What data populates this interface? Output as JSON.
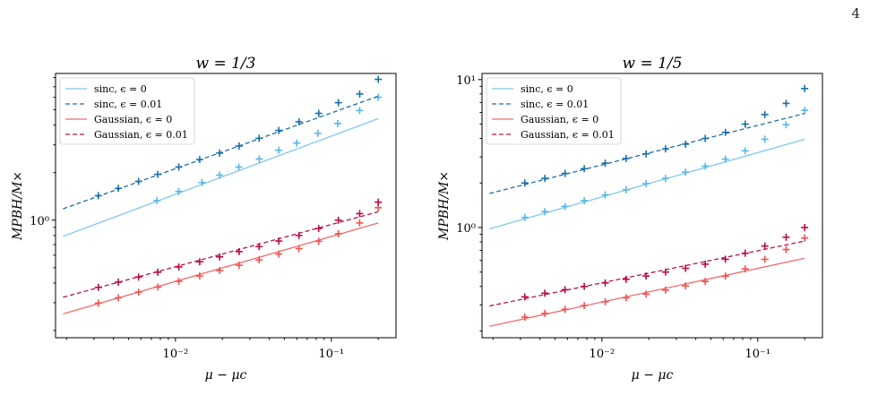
{
  "page": {
    "number": "4"
  },
  "colors": {
    "sinc_eps0": "#7ec8ec",
    "sinc_eps001": "#1f6fa6",
    "gauss_eps0": "#f26b6b",
    "gauss_eps001": "#b5144f",
    "sinc_eps0_markers": "#5bb6e6",
    "sinc_eps001_markers": "#1a6fa8",
    "gauss_eps0_markers": "#f0524f",
    "gauss_eps001_markers": "#b80b48"
  },
  "chart_data": [
    {
      "type": "line",
      "title": "w = 1/3",
      "xlabel": "μ − μc",
      "ylabel": "MPBH/M×",
      "xscale": "log",
      "yscale": "log",
      "xlim": [
        0.0017,
        0.26
      ],
      "ylim": [
        0.18,
        8.5
      ],
      "xticks": [
        {
          "value": 0.01,
          "label": "10⁻²"
        },
        {
          "value": 0.1,
          "label": "10⁻¹"
        }
      ],
      "yticks": [
        {
          "value": 1,
          "label": "10⁰"
        }
      ],
      "grid": false,
      "legend_position": "top-left",
      "series": [
        {
          "name": "sinc, ϵ = 0",
          "style": "solid",
          "color": "#7ec8ec",
          "line_x": [
            0.0019,
            0.2
          ],
          "line_y": [
            0.79,
            4.4
          ],
          "markers_x": [
            0.0076,
            0.0105,
            0.0148,
            0.0192,
            0.0255,
            0.0345,
            0.046,
            0.06,
            0.082,
            0.11,
            0.152,
            0.2
          ],
          "markers_y": [
            1.33,
            1.52,
            1.73,
            1.93,
            2.17,
            2.44,
            2.77,
            3.08,
            3.55,
            4.1,
            4.95,
            6.0
          ],
          "marker_color": "#5bb6e6"
        },
        {
          "name": "sinc, ϵ = 0.01",
          "style": "dashed",
          "color": "#1f6fa6",
          "line_x": [
            0.0019,
            0.2
          ],
          "line_y": [
            1.18,
            6.1
          ],
          "markers_x": [
            0.0032,
            0.0043,
            0.0058,
            0.0077,
            0.0105,
            0.0143,
            0.0192,
            0.0256,
            0.0344,
            0.046,
            0.062,
            0.083,
            0.111,
            0.152,
            0.2
          ],
          "markers_y": [
            1.43,
            1.59,
            1.76,
            1.95,
            2.17,
            2.42,
            2.66,
            2.95,
            3.3,
            3.7,
            4.2,
            4.75,
            5.55,
            6.3,
            7.8
          ],
          "marker_color": "#1a6fa8"
        },
        {
          "name": "Gaussian, ϵ = 0",
          "style": "solid",
          "color": "#f26b6b",
          "line_x": [
            0.0019,
            0.2
          ],
          "line_y": [
            0.255,
            0.96
          ],
          "markers_x": [
            0.0032,
            0.0043,
            0.0058,
            0.0077,
            0.0105,
            0.0143,
            0.0192,
            0.0256,
            0.0344,
            0.046,
            0.062,
            0.083,
            0.111,
            0.152,
            0.2
          ],
          "markers_y": [
            0.298,
            0.322,
            0.35,
            0.377,
            0.41,
            0.443,
            0.48,
            0.518,
            0.56,
            0.61,
            0.66,
            0.735,
            0.82,
            0.96,
            1.2
          ],
          "marker_color": "#f0524f"
        },
        {
          "name": "Gaussian, ϵ = 0.01",
          "style": "dashed",
          "color": "#b5144f",
          "line_x": [
            0.0019,
            0.2
          ],
          "line_y": [
            0.325,
            1.13
          ],
          "markers_x": [
            0.0032,
            0.0043,
            0.0058,
            0.0077,
            0.0105,
            0.0143,
            0.0192,
            0.0256,
            0.0344,
            0.046,
            0.062,
            0.083,
            0.111,
            0.152,
            0.2
          ],
          "markers_y": [
            0.375,
            0.405,
            0.436,
            0.468,
            0.505,
            0.545,
            0.585,
            0.632,
            0.68,
            0.738,
            0.8,
            0.885,
            1.0,
            1.1,
            1.3
          ],
          "marker_color": "#b80b48"
        }
      ]
    },
    {
      "type": "line",
      "title": "w = 1/5",
      "xlabel": "μ − μc",
      "ylabel": "MPBH/M×",
      "xscale": "log",
      "yscale": "log",
      "xlim": [
        0.0017,
        0.26
      ],
      "ylim": [
        0.18,
        11
      ],
      "xticks": [
        {
          "value": 0.01,
          "label": "10⁻²"
        },
        {
          "value": 0.1,
          "label": "10⁻¹"
        }
      ],
      "yticks": [
        {
          "value": 1,
          "label": "10⁰"
        },
        {
          "value": 10,
          "label": "10¹"
        }
      ],
      "grid": false,
      "legend_position": "top-left",
      "series": [
        {
          "name": "sinc, ϵ = 0",
          "style": "solid",
          "color": "#7ec8ec",
          "line_x": [
            0.0019,
            0.2
          ],
          "line_y": [
            0.98,
            3.95
          ],
          "markers_x": [
            0.0032,
            0.0043,
            0.0058,
            0.0077,
            0.0105,
            0.0143,
            0.0192,
            0.0256,
            0.0344,
            0.046,
            0.062,
            0.083,
            0.111,
            0.152,
            0.2
          ],
          "markers_y": [
            1.17,
            1.28,
            1.39,
            1.52,
            1.66,
            1.8,
            1.98,
            2.15,
            2.37,
            2.6,
            2.9,
            3.3,
            3.95,
            4.95,
            6.2
          ],
          "marker_color": "#5bb6e6"
        },
        {
          "name": "sinc, ϵ = 0.01",
          "style": "dashed",
          "color": "#1f6fa6",
          "line_x": [
            0.0019,
            0.2
          ],
          "line_y": [
            1.7,
            5.9
          ],
          "markers_x": [
            0.0032,
            0.0043,
            0.0058,
            0.0077,
            0.0105,
            0.0143,
            0.0192,
            0.0256,
            0.0344,
            0.046,
            0.062,
            0.083,
            0.111,
            0.152,
            0.2
          ],
          "markers_y": [
            2.0,
            2.15,
            2.32,
            2.5,
            2.72,
            2.93,
            3.15,
            3.4,
            3.66,
            4.0,
            4.4,
            5.0,
            5.8,
            6.9,
            8.7
          ],
          "marker_color": "#1a6fa8"
        },
        {
          "name": "Gaussian, ϵ = 0",
          "style": "solid",
          "color": "#f26b6b",
          "line_x": [
            0.0019,
            0.2
          ],
          "line_y": [
            0.215,
            0.62
          ],
          "markers_x": [
            0.0032,
            0.0043,
            0.0058,
            0.0077,
            0.0105,
            0.0143,
            0.0192,
            0.0256,
            0.0344,
            0.046,
            0.062,
            0.083,
            0.111,
            0.152,
            0.2
          ],
          "markers_y": [
            0.248,
            0.263,
            0.28,
            0.297,
            0.315,
            0.335,
            0.355,
            0.378,
            0.403,
            0.432,
            0.47,
            0.525,
            0.61,
            0.71,
            0.85
          ],
          "marker_color": "#f0524f"
        },
        {
          "name": "Gaussian, ϵ = 0.01",
          "style": "dashed",
          "color": "#b5144f",
          "line_x": [
            0.0019,
            0.2
          ],
          "line_y": [
            0.295,
            0.81
          ],
          "markers_x": [
            0.0032,
            0.0043,
            0.0058,
            0.0077,
            0.0105,
            0.0143,
            0.0192,
            0.0256,
            0.0344,
            0.046,
            0.062,
            0.083,
            0.111,
            0.152,
            0.2
          ],
          "markers_y": [
            0.34,
            0.36,
            0.38,
            0.4,
            0.422,
            0.447,
            0.47,
            0.5,
            0.53,
            0.565,
            0.61,
            0.67,
            0.75,
            0.86,
            1.0
          ],
          "marker_color": "#b80b48"
        }
      ]
    }
  ]
}
